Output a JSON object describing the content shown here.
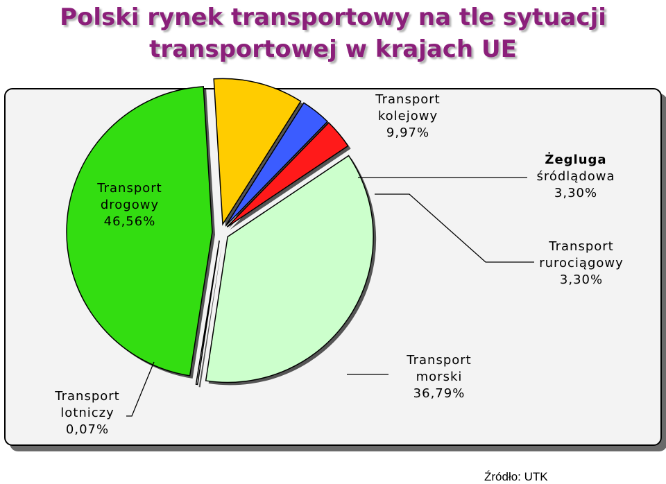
{
  "title_line1": "Polski rynek transportowy na tle sytuacji",
  "title_line2": "transportowej w krajach UE",
  "source": "Źródło: UTK",
  "chart_data": {
    "type": "pie",
    "exploded": true,
    "slices": [
      {
        "key": "rail",
        "label_line1": "Transport",
        "label_line2": "kolejowy",
        "value_text": "9,97%",
        "value": 9.97,
        "color": "#ffcc00"
      },
      {
        "key": "inland",
        "label_line1": "Żegluga",
        "label_line2": "śródlądowa",
        "value_text": "3,30%",
        "value": 3.3,
        "color": "#3b5cff"
      },
      {
        "key": "pipeline",
        "label_line1": "Transport",
        "label_line2": "rurociągowy",
        "value_text": "3,30%",
        "value": 3.3,
        "color": "#ff1a1a"
      },
      {
        "key": "sea",
        "label_line1": "Transport",
        "label_line2": "morski",
        "value_text": "36,79%",
        "value": 36.79,
        "color": "#ccffcc"
      },
      {
        "key": "air",
        "label_line1": "Transport",
        "label_line2": "lotniczy",
        "value_text": "0,07%",
        "value": 0.07,
        "color": "#ffffff"
      },
      {
        "key": "road",
        "label_line1": "Transport",
        "label_line2": "drogowy",
        "value_text": "46,56%",
        "value": 46.56,
        "color": "#33dd11"
      }
    ]
  }
}
